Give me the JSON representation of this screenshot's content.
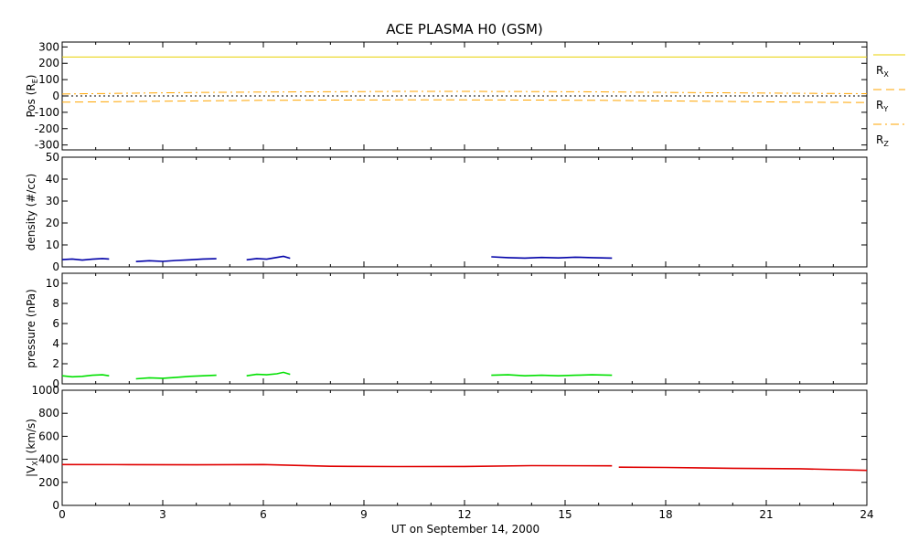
{
  "chart_data": {
    "title": "ACE PLASMA H0 (GSM)",
    "xlabel": "UT on September 14, 2000",
    "type": "line",
    "x_range": [
      0,
      24
    ],
    "x_ticks": [
      "0",
      "3",
      "6",
      "9",
      "12",
      "15",
      "18",
      "21",
      "24"
    ],
    "panels": [
      {
        "id": "pos",
        "ylabel": {
          "main": "Pos (R",
          "sub": "E",
          "end": ")"
        },
        "ylim": [
          -330,
          330
        ],
        "y_ticks": [
          -300,
          -200,
          -100,
          0,
          100,
          200,
          300
        ],
        "legend": [
          {
            "main": "R",
            "sub": "X",
            "style": "solid"
          },
          {
            "main": "R",
            "sub": "Y",
            "style": "dashed"
          },
          {
            "main": "R",
            "sub": "Z",
            "style": "dashdot"
          }
        ],
        "series": [
          {
            "key": "RX",
            "color": "#e8d000",
            "style": "solid",
            "x": [
              0,
              24
            ],
            "values": [
              238,
              238
            ]
          },
          {
            "key": "RY",
            "color": "#ffa500",
            "style": "dashed",
            "x": [
              0,
              2,
              4,
              6,
              8,
              10,
              12,
              14,
              16,
              18,
              20,
              22,
              24
            ],
            "values": [
              -38,
              -34,
              -30,
              -27,
              -25,
              -24,
              -24,
              -25,
              -27,
              -30,
              -34,
              -38,
              -40
            ]
          },
          {
            "key": "RZ",
            "color": "#ffa500",
            "style": "dashdot",
            "x": [
              0,
              2,
              4,
              6,
              8,
              10,
              12,
              14,
              16,
              18,
              20,
              22,
              24
            ],
            "values": [
              12,
              17,
              21,
              24,
              26,
              28,
              28,
              27,
              25,
              22,
              19,
              16,
              14
            ]
          },
          {
            "key": "zero",
            "color": "#000000",
            "style": "dotted",
            "x": [
              0,
              24
            ],
            "values": [
              0,
              0
            ]
          }
        ]
      },
      {
        "id": "density",
        "ylabel": {
          "main": "density (#/cc)"
        },
        "ylim": [
          0,
          50
        ],
        "y_ticks": [
          0,
          10,
          20,
          30,
          40,
          50
        ],
        "series": [
          {
            "key": "density",
            "color": "#0000a8",
            "segments": [
              {
                "x": [
                  0.0,
                  0.3,
                  0.6,
                  0.9,
                  1.2,
                  1.4
                ],
                "values": [
                  3.3,
                  3.6,
                  3.1,
                  3.5,
                  3.8,
                  3.6
                ]
              },
              {
                "x": [
                  2.2,
                  2.6,
                  3.0,
                  3.4,
                  3.8,
                  4.2,
                  4.6
                ],
                "values": [
                  2.4,
                  2.8,
                  2.5,
                  2.9,
                  3.2,
                  3.6,
                  3.7
                ]
              },
              {
                "x": [
                  5.5,
                  5.8,
                  6.1,
                  6.4,
                  6.6,
                  6.8
                ],
                "values": [
                  3.2,
                  3.8,
                  3.5,
                  4.3,
                  4.8,
                  3.9
                ]
              },
              {
                "x": [
                  12.8,
                  13.3,
                  13.8,
                  14.3,
                  14.8,
                  15.3,
                  15.8,
                  16.4
                ],
                "values": [
                  4.6,
                  4.2,
                  4.0,
                  4.3,
                  4.1,
                  4.4,
                  4.2,
                  4.0
                ]
              }
            ]
          }
        ]
      },
      {
        "id": "pressure",
        "ylabel": {
          "main": "pressure (nPa)"
        },
        "ylim": [
          0,
          11
        ],
        "y_ticks": [
          0,
          2,
          4,
          6,
          8,
          10
        ],
        "series": [
          {
            "key": "pressure",
            "color": "#00e000",
            "segments": [
              {
                "x": [
                  0.0,
                  0.3,
                  0.6,
                  0.9,
                  1.2,
                  1.4
                ],
                "values": [
                  0.8,
                  0.7,
                  0.75,
                  0.85,
                  0.9,
                  0.8
                ]
              },
              {
                "x": [
                  2.2,
                  2.6,
                  3.0,
                  3.4,
                  3.8,
                  4.2,
                  4.6
                ],
                "values": [
                  0.5,
                  0.6,
                  0.55,
                  0.65,
                  0.75,
                  0.8,
                  0.85
                ]
              },
              {
                "x": [
                  5.5,
                  5.8,
                  6.1,
                  6.4,
                  6.6,
                  6.8
                ],
                "values": [
                  0.8,
                  0.95,
                  0.9,
                  1.0,
                  1.15,
                  0.95
                ]
              },
              {
                "x": [
                  12.8,
                  13.3,
                  13.8,
                  14.3,
                  14.8,
                  15.3,
                  15.8,
                  16.4
                ],
                "values": [
                  0.85,
                  0.9,
                  0.8,
                  0.85,
                  0.8,
                  0.85,
                  0.9,
                  0.85
                ]
              }
            ]
          }
        ]
      },
      {
        "id": "vx",
        "ylabel": {
          "main": "|V",
          "sub": "X",
          "end": "| (km/s)"
        },
        "ylim": [
          0,
          1000
        ],
        "y_ticks": [
          0,
          200,
          400,
          600,
          800,
          1000
        ],
        "series": [
          {
            "key": "vx",
            "color": "#e00000",
            "segments": [
              {
                "x": [
                  0,
                  2,
                  4,
                  6,
                  8,
                  10,
                  12,
                  14,
                  16.4
                ],
                "values": [
                  355,
                  354,
                  352,
                  355,
                  340,
                  337,
                  338,
                  345,
                  344
                ]
              },
              {
                "x": [
                  16.6,
                  18,
                  20,
                  22,
                  24
                ],
                "values": [
                  332,
                  329,
                  322,
                  318,
                  304
                ]
              }
            ]
          }
        ]
      }
    ]
  }
}
